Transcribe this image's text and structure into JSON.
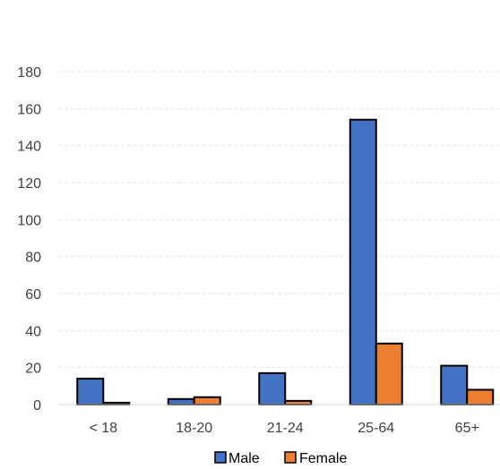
{
  "chart_data": {
    "type": "bar",
    "categories": [
      "< 18",
      "18-20",
      "21-24",
      "25-64",
      "65+"
    ],
    "series": [
      {
        "name": "Male",
        "values": [
          14,
          3,
          17,
          154,
          21
        ],
        "color": "#4472C4"
      },
      {
        "name": "Female",
        "values": [
          1,
          4,
          2,
          33,
          8
        ],
        "color": "#ED7D31"
      }
    ],
    "yticks": [
      0,
      20,
      40,
      60,
      80,
      100,
      120,
      140,
      160,
      180
    ],
    "ylim": [
      0,
      180
    ],
    "grid": true,
    "legend_position": "bottom"
  }
}
